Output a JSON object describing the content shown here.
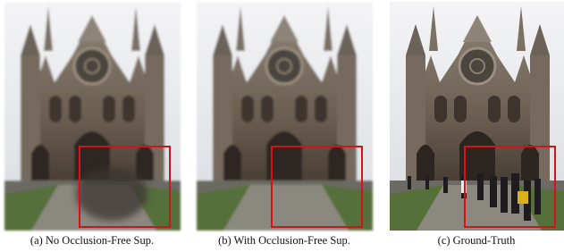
{
  "figure": {
    "panels": [
      {
        "caption": "(a) No Occlusion-Free Sup."
      },
      {
        "caption": "(b) With Occlusion-Free Sup."
      },
      {
        "caption": "(c) Ground-Truth"
      }
    ]
  }
}
